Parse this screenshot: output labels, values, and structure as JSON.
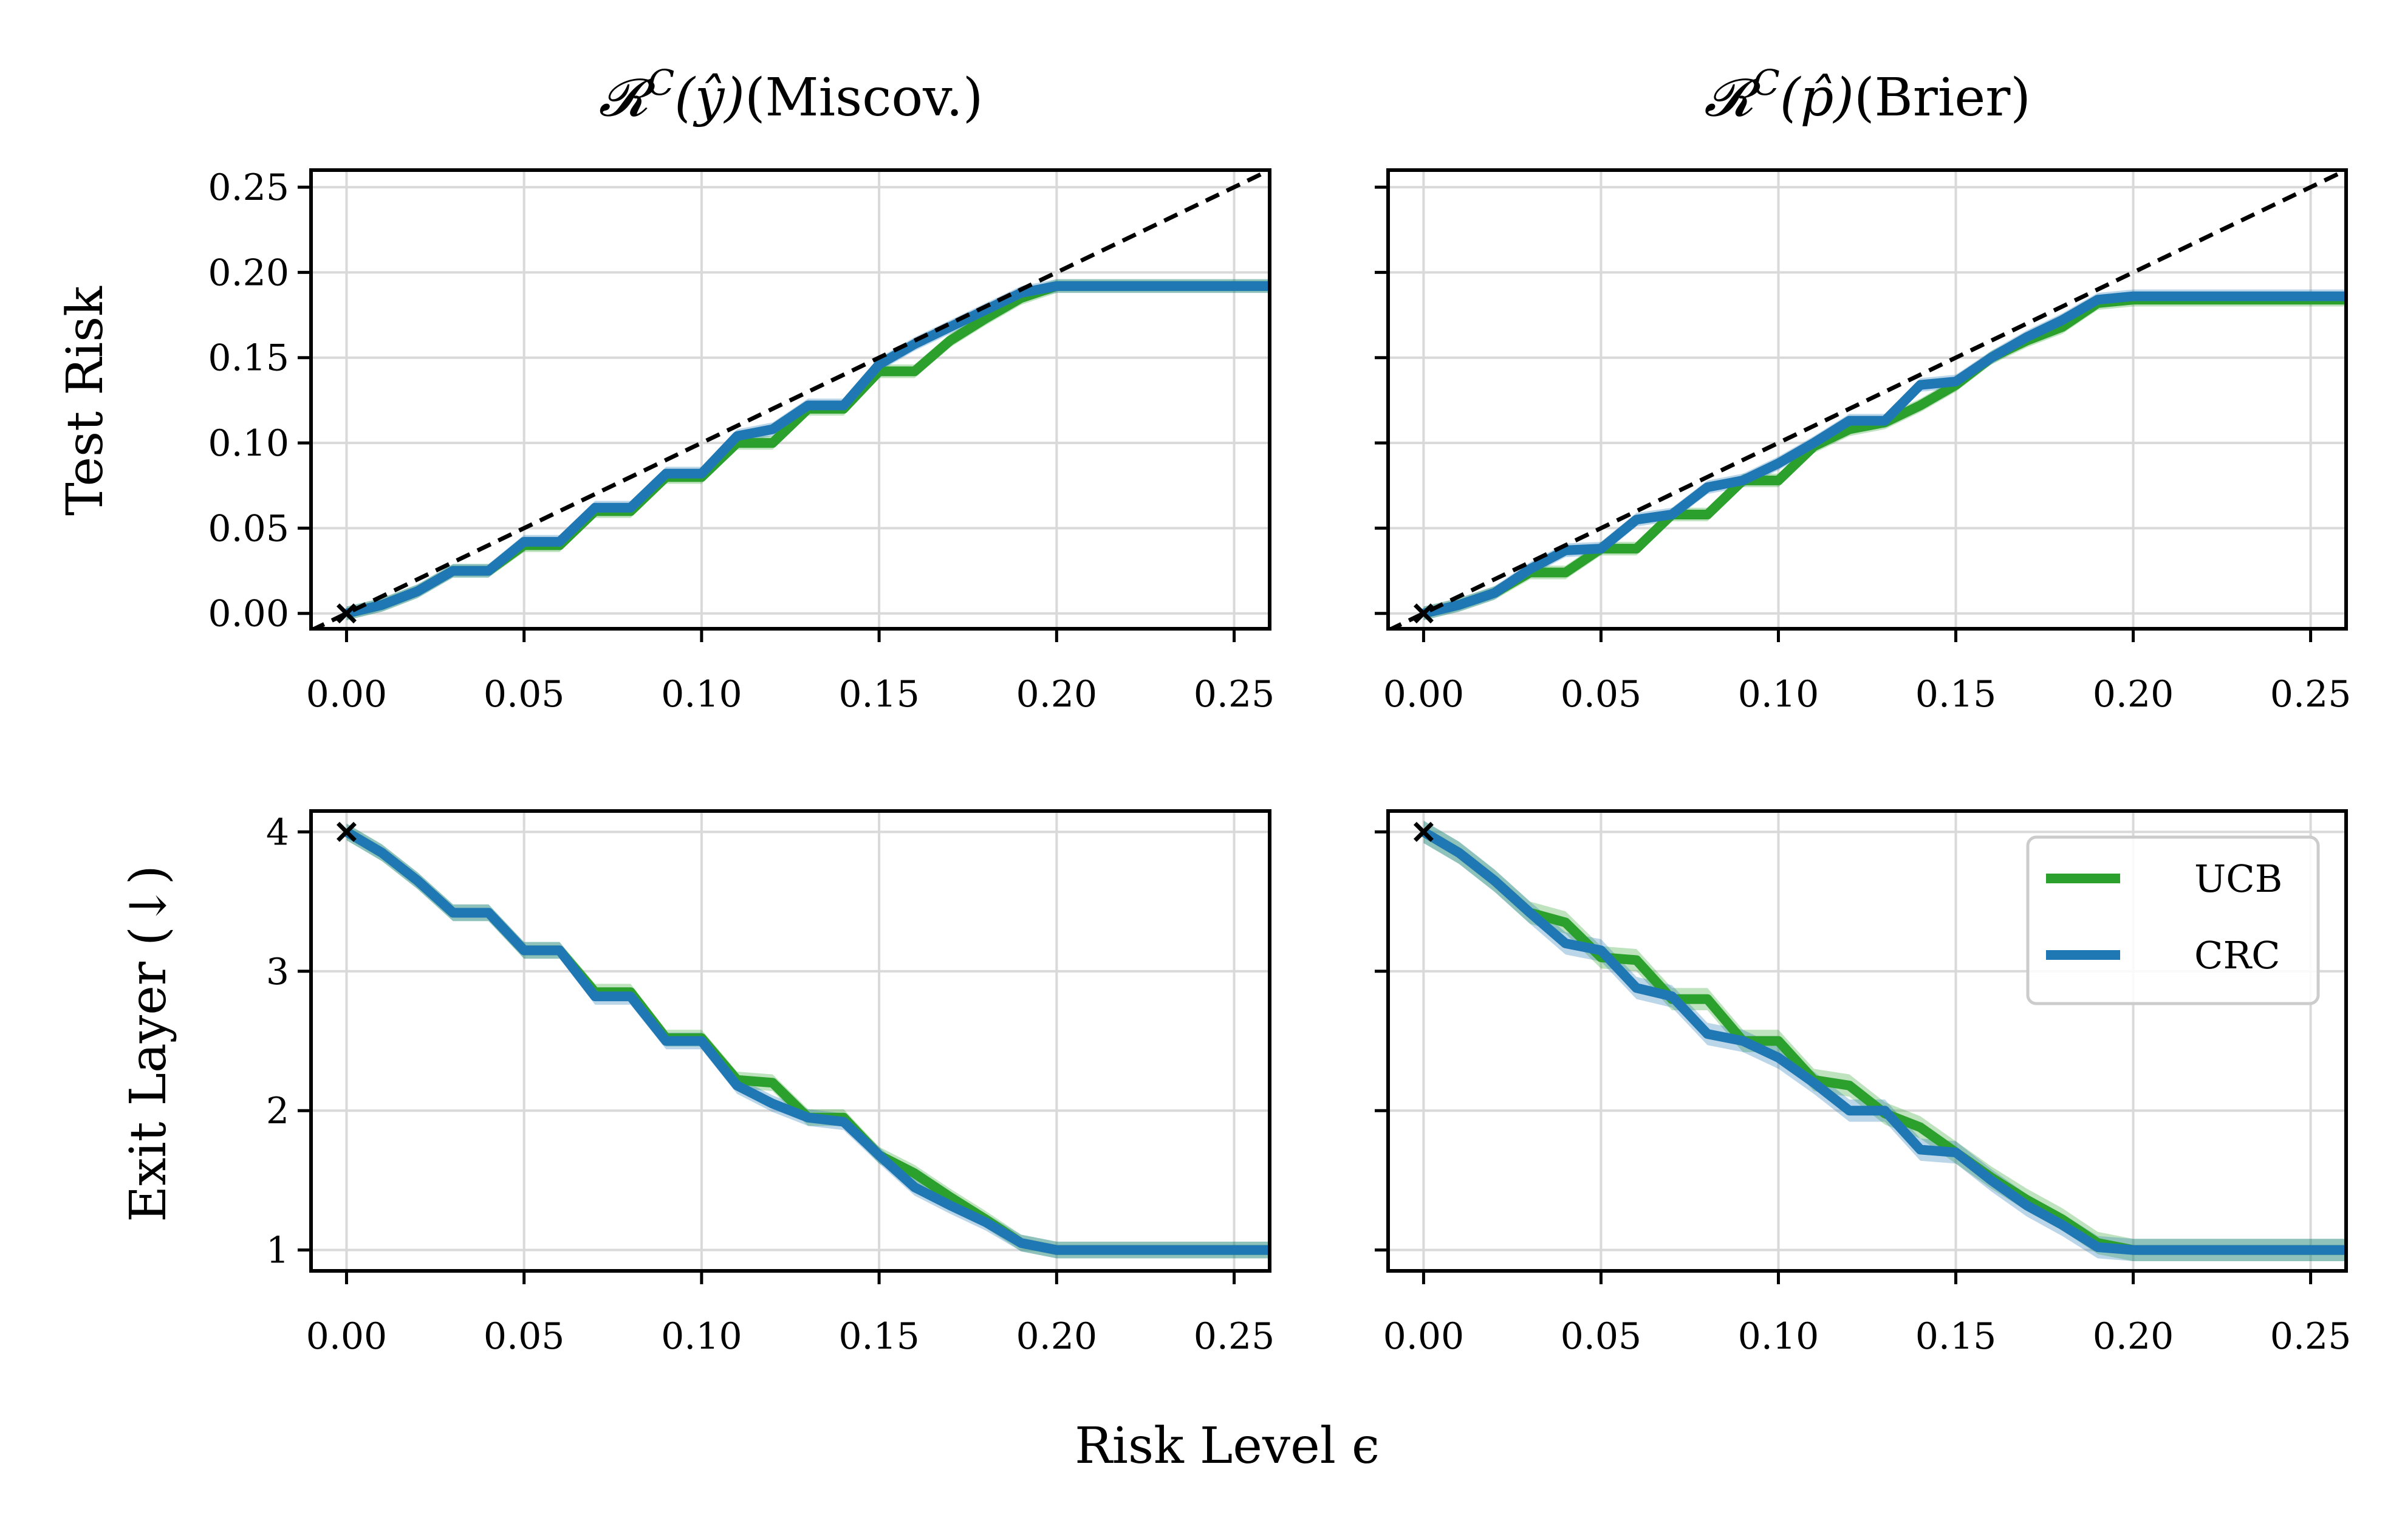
{
  "colors": {
    "UCB": "#2ca02c",
    "CRC": "#1f77b4",
    "diagonal": "#000000",
    "grid": "#d9d9d9"
  },
  "figure": {
    "xlabel": "Risk Level ϵ",
    "row_labels": [
      "Test Risk",
      "Exit Layer (↓)"
    ],
    "column_titles": [
      {
        "symbol": "𝓡",
        "superscript": "C",
        "argument": "(ŷ)",
        "suffix": "(Miscov.)"
      },
      {
        "symbol": "𝓡",
        "superscript": "C",
        "argument": "(p̂)",
        "suffix": "(Brier)"
      }
    ]
  },
  "legend": {
    "position": "upper-right (bottom-right panel)",
    "entries": [
      "UCB",
      "CRC"
    ]
  },
  "chart_data": [
    {
      "id": "top-left",
      "type": "line",
      "title": "𝓡^C(ŷ)(Miscov.)",
      "xlabel": "",
      "ylabel": "Test Risk",
      "xlim": [
        -0.01,
        0.26
      ],
      "ylim": [
        -0.009,
        0.26
      ],
      "xticks": [
        0.0,
        0.05,
        0.1,
        0.15,
        0.2,
        0.25
      ],
      "xtick_labels": [
        "0.00",
        "0.05",
        "0.10",
        "0.15",
        "0.20",
        "0.25"
      ],
      "yticks": [
        0.0,
        0.05,
        0.1,
        0.15,
        0.2,
        0.25
      ],
      "ytick_labels": [
        "0.00",
        "0.05",
        "0.10",
        "0.15",
        "0.20",
        "0.25"
      ],
      "show_ytick_labels": true,
      "diagonal": true,
      "grid": true,
      "x": [
        0.0,
        0.01,
        0.02,
        0.03,
        0.04,
        0.05,
        0.06,
        0.07,
        0.08,
        0.09,
        0.1,
        0.11,
        0.12,
        0.13,
        0.14,
        0.15,
        0.16,
        0.17,
        0.18,
        0.19,
        0.2,
        0.21,
        0.22,
        0.23,
        0.24,
        0.25,
        0.26
      ],
      "series": [
        {
          "name": "UCB",
          "values": [
            0.0,
            0.005,
            0.013,
            0.025,
            0.025,
            0.04,
            0.04,
            0.06,
            0.06,
            0.08,
            0.08,
            0.1,
            0.1,
            0.12,
            0.12,
            0.142,
            0.142,
            0.16,
            0.173,
            0.185,
            0.192,
            0.192,
            0.192,
            0.192,
            0.192,
            0.192,
            0.192
          ],
          "band": 0.004
        },
        {
          "name": "CRC",
          "values": [
            0.0,
            0.005,
            0.013,
            0.025,
            0.025,
            0.042,
            0.042,
            0.062,
            0.062,
            0.082,
            0.082,
            0.104,
            0.108,
            0.122,
            0.122,
            0.146,
            0.158,
            0.168,
            0.178,
            0.188,
            0.192,
            0.192,
            0.192,
            0.192,
            0.192,
            0.192,
            0.192
          ],
          "band": 0.004
        }
      ]
    },
    {
      "id": "top-right",
      "type": "line",
      "title": "𝓡^C(p̂)(Brier)",
      "xlabel": "",
      "ylabel": "",
      "xlim": [
        -0.01,
        0.26
      ],
      "ylim": [
        -0.009,
        0.26
      ],
      "xticks": [
        0.0,
        0.05,
        0.1,
        0.15,
        0.2,
        0.25
      ],
      "xtick_labels": [
        "0.00",
        "0.05",
        "0.10",
        "0.15",
        "0.20",
        "0.25"
      ],
      "yticks": [
        0.0,
        0.05,
        0.1,
        0.15,
        0.2,
        0.25
      ],
      "ytick_labels": [
        "0.00",
        "0.05",
        "0.10",
        "0.15",
        "0.20",
        "0.25"
      ],
      "show_ytick_labels": false,
      "diagonal": true,
      "grid": true,
      "x": [
        0.0,
        0.01,
        0.02,
        0.03,
        0.04,
        0.05,
        0.06,
        0.07,
        0.08,
        0.09,
        0.1,
        0.11,
        0.12,
        0.13,
        0.14,
        0.15,
        0.16,
        0.17,
        0.18,
        0.19,
        0.2,
        0.21,
        0.22,
        0.23,
        0.24,
        0.25,
        0.26
      ],
      "series": [
        {
          "name": "UCB",
          "values": [
            0.0,
            0.005,
            0.012,
            0.024,
            0.024,
            0.038,
            0.038,
            0.058,
            0.058,
            0.078,
            0.078,
            0.098,
            0.108,
            0.112,
            0.122,
            0.134,
            0.15,
            0.16,
            0.168,
            0.182,
            0.184,
            0.184,
            0.184,
            0.184,
            0.184,
            0.184,
            0.184
          ],
          "band": 0.004
        },
        {
          "name": "CRC",
          "values": [
            0.0,
            0.005,
            0.012,
            0.026,
            0.037,
            0.038,
            0.055,
            0.058,
            0.074,
            0.078,
            0.088,
            0.1,
            0.113,
            0.113,
            0.134,
            0.136,
            0.15,
            0.162,
            0.172,
            0.184,
            0.186,
            0.186,
            0.186,
            0.186,
            0.186,
            0.186,
            0.186
          ],
          "band": 0.004
        }
      ]
    },
    {
      "id": "bottom-left",
      "type": "line",
      "title": "",
      "xlabel": "Risk Level ϵ",
      "ylabel": "Exit Layer (↓)",
      "xlim": [
        -0.01,
        0.26
      ],
      "ylim": [
        0.85,
        4.15
      ],
      "xticks": [
        0.0,
        0.05,
        0.1,
        0.15,
        0.2,
        0.25
      ],
      "xtick_labels": [
        "0.00",
        "0.05",
        "0.10",
        "0.15",
        "0.20",
        "0.25"
      ],
      "yticks": [
        1,
        2,
        3,
        4
      ],
      "ytick_labels": [
        "1",
        "2",
        "3",
        "4"
      ],
      "show_ytick_labels": true,
      "diagonal": false,
      "grid": true,
      "x": [
        0.0,
        0.01,
        0.02,
        0.03,
        0.04,
        0.05,
        0.06,
        0.07,
        0.08,
        0.09,
        0.1,
        0.11,
        0.12,
        0.13,
        0.14,
        0.15,
        0.16,
        0.17,
        0.18,
        0.19,
        0.2,
        0.21,
        0.22,
        0.23,
        0.24,
        0.25,
        0.26
      ],
      "series": [
        {
          "name": "UCB",
          "values": [
            4.0,
            3.85,
            3.65,
            3.42,
            3.42,
            3.15,
            3.15,
            2.85,
            2.85,
            2.52,
            2.52,
            2.22,
            2.2,
            1.95,
            1.95,
            1.68,
            1.55,
            1.38,
            1.22,
            1.05,
            1.0,
            1.0,
            1.0,
            1.0,
            1.0,
            1.0,
            1.0
          ],
          "band": 0.06
        },
        {
          "name": "CRC",
          "values": [
            4.0,
            3.85,
            3.65,
            3.42,
            3.42,
            3.15,
            3.15,
            2.82,
            2.82,
            2.5,
            2.5,
            2.18,
            2.05,
            1.95,
            1.92,
            1.68,
            1.45,
            1.32,
            1.2,
            1.05,
            1.0,
            1.0,
            1.0,
            1.0,
            1.0,
            1.0,
            1.0
          ],
          "band": 0.06
        }
      ]
    },
    {
      "id": "bottom-right",
      "type": "line",
      "title": "",
      "xlabel": "Risk Level ϵ",
      "ylabel": "",
      "xlim": [
        -0.01,
        0.26
      ],
      "ylim": [
        0.85,
        4.15
      ],
      "xticks": [
        0.0,
        0.05,
        0.1,
        0.15,
        0.2,
        0.25
      ],
      "xtick_labels": [
        "0.00",
        "0.05",
        "0.10",
        "0.15",
        "0.20",
        "0.25"
      ],
      "yticks": [
        1,
        2,
        3,
        4
      ],
      "ytick_labels": [
        "1",
        "2",
        "3",
        "4"
      ],
      "show_ytick_labels": false,
      "diagonal": false,
      "grid": true,
      "x": [
        0.0,
        0.01,
        0.02,
        0.03,
        0.04,
        0.05,
        0.06,
        0.07,
        0.08,
        0.09,
        0.1,
        0.11,
        0.12,
        0.13,
        0.14,
        0.15,
        0.16,
        0.17,
        0.18,
        0.19,
        0.2,
        0.21,
        0.22,
        0.23,
        0.24,
        0.25,
        0.26
      ],
      "series": [
        {
          "name": "UCB",
          "values": [
            4.0,
            3.85,
            3.65,
            3.42,
            3.35,
            3.1,
            3.08,
            2.8,
            2.8,
            2.5,
            2.5,
            2.22,
            2.18,
            1.98,
            1.88,
            1.7,
            1.52,
            1.36,
            1.22,
            1.05,
            1.0,
            1.0,
            1.0,
            1.0,
            1.0,
            1.0,
            1.0
          ],
          "band": 0.08
        },
        {
          "name": "CRC",
          "values": [
            4.0,
            3.85,
            3.65,
            3.42,
            3.2,
            3.15,
            2.88,
            2.82,
            2.55,
            2.5,
            2.38,
            2.2,
            2.0,
            2.0,
            1.72,
            1.7,
            1.5,
            1.32,
            1.18,
            1.02,
            1.0,
            1.0,
            1.0,
            1.0,
            1.0,
            1.0,
            1.0
          ],
          "band": 0.08
        }
      ]
    }
  ]
}
